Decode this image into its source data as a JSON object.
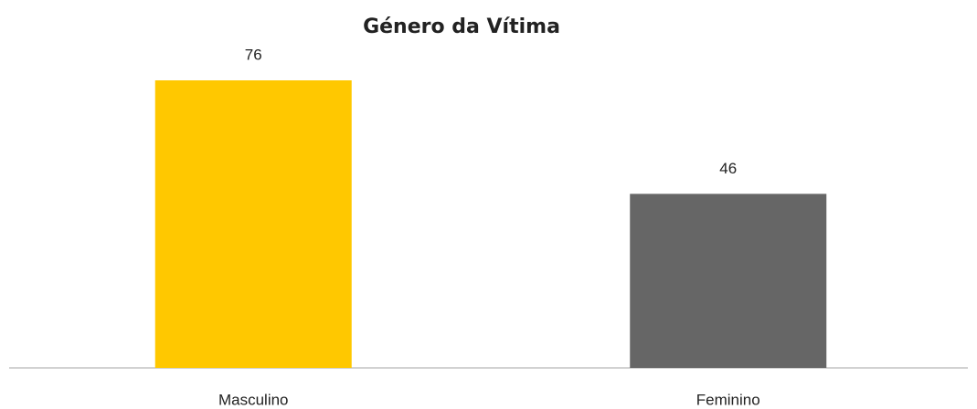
{
  "chart_data": {
    "type": "bar",
    "title": "Género da Vítima",
    "categories": [
      "Masculino",
      "Feminino"
    ],
    "values": [
      76,
      46
    ],
    "colors": [
      "#ffc800",
      "#666666"
    ]
  }
}
